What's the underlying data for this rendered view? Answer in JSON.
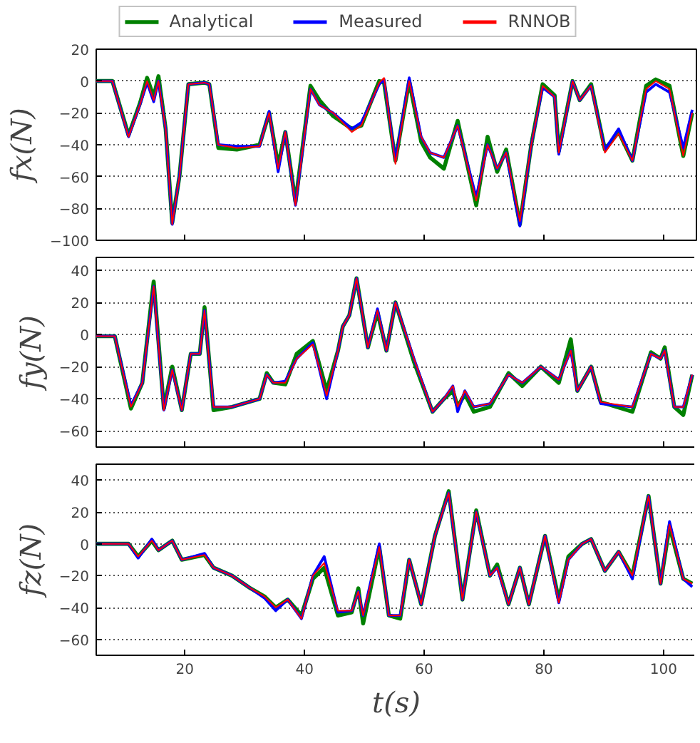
{
  "chart_data": [
    {
      "type": "line",
      "ylabel": "fx(N)",
      "legend": "top",
      "grid": "y",
      "tick_labels": "y",
      "xlim": [
        5.2,
        105.5
      ],
      "xticks": [
        20,
        40,
        60,
        80,
        100
      ],
      "ylim": [
        -100,
        20
      ],
      "yticks": [
        -100,
        -80,
        -60,
        -40,
        -20,
        0,
        20
      ],
      "x": [
        5.2,
        7.9,
        10.6,
        12.5,
        13.7,
        14.8,
        15.6,
        16.8,
        17.9,
        19.1,
        20.6,
        23.3,
        24.1,
        25.6,
        28.7,
        32.5,
        34.1,
        35.6,
        36.8,
        38.5,
        41,
        42.5,
        44.8,
        47.9,
        49.5,
        52.5,
        53.3,
        55.2,
        57.5,
        59.5,
        61,
        63.3,
        65.6,
        68.7,
        70.6,
        72.2,
        73.7,
        76,
        77.9,
        79.8,
        81.8,
        82.5,
        84.8,
        86,
        87.9,
        90.2,
        92.5,
        94.8,
        97.1,
        98.7,
        101,
        103.3,
        104.8
      ],
      "series": [
        {
          "name": "Analytical",
          "color": "#008000",
          "values": [
            0,
            0,
            -34,
            -14,
            2,
            -10,
            3,
            -30,
            -89,
            -60,
            -2,
            -1,
            -2,
            -42,
            -43,
            -40,
            -20,
            -53,
            -32,
            -76,
            -3,
            -12,
            -22,
            -30,
            -28,
            0,
            -1,
            -50,
            0,
            -38,
            -48,
            -55,
            -25,
            -78,
            -35,
            -57,
            -43,
            -90,
            -40,
            -2,
            -9,
            -44,
            0,
            -12,
            -2,
            -43,
            -32,
            -50,
            -3,
            1,
            -3,
            -47,
            -20
          ]
        },
        {
          "name": "Measured",
          "color": "#0000ff",
          "values": [
            0,
            0,
            -35,
            -15,
            -1,
            -13,
            0,
            -30,
            -90,
            -60,
            -2,
            -1,
            -2,
            -40,
            -41,
            -41,
            -19,
            -57,
            -32,
            -78,
            -5,
            -15,
            -20,
            -30,
            -26,
            -2,
            1,
            -50,
            2,
            -35,
            -45,
            -48,
            -28,
            -73,
            -40,
            -55,
            -45,
            -91,
            -40,
            -4,
            -10,
            -46,
            0,
            -12,
            -3,
            -43,
            -30,
            -50,
            -7,
            -2,
            -7,
            -42,
            -18
          ]
        },
        {
          "name": "RNNOB",
          "color": "#ff0000",
          "values": [
            0,
            0,
            -35,
            -15,
            0,
            -12,
            0,
            -30,
            -90,
            -60,
            -2,
            -1,
            -2,
            -40,
            -42,
            -41,
            -20,
            -55,
            -32,
            -78,
            -5,
            -15,
            -20,
            -32,
            -28,
            -1,
            2,
            -52,
            0,
            -35,
            -45,
            -48,
            -28,
            -75,
            -40,
            -55,
            -45,
            -88,
            -40,
            -3,
            -10,
            -45,
            0,
            -12,
            -3,
            -45,
            -33,
            -50,
            -5,
            0,
            -5,
            -47,
            -20
          ]
        }
      ]
    },
    {
      "type": "line",
      "ylabel": "fy(N)",
      "grid": "y",
      "tick_labels": "y",
      "xlim": [
        5.2,
        105.5
      ],
      "xticks": [
        20,
        40,
        60,
        80,
        100
      ],
      "ylim": [
        -70,
        48
      ],
      "yticks": [
        -60,
        -40,
        -20,
        0,
        20,
        40
      ],
      "x": [
        5.2,
        8.3,
        11,
        12.9,
        14.8,
        16.5,
        17.9,
        19.5,
        21,
        22.5,
        23.3,
        24.8,
        27.9,
        32.5,
        33.7,
        34.8,
        36.8,
        38.7,
        41.4,
        43.7,
        45.6,
        46.4,
        47.5,
        48.7,
        50.6,
        52.2,
        53.7,
        55.2,
        58.3,
        61.4,
        63.3,
        64.8,
        65.6,
        66.8,
        68.3,
        71,
        74.1,
        76.4,
        79.5,
        82.5,
        84.5,
        85.6,
        87.9,
        89.5,
        94.8,
        97.9,
        99.5,
        100.2,
        101.8,
        103.3,
        104.8
      ],
      "series": [
        {
          "color": "#008000",
          "values": [
            -1,
            -1,
            -46,
            -30,
            33,
            -46,
            -20,
            -47,
            -12,
            -12,
            17,
            -47,
            -45,
            -40,
            -24,
            -30,
            -31,
            -12,
            -4,
            -35,
            -10,
            5,
            12,
            35,
            -8,
            14,
            -10,
            20,
            -17,
            -48,
            -40,
            -35,
            -45,
            -37,
            -48,
            -45,
            -24,
            -32,
            -20,
            -30,
            -3,
            -35,
            -20,
            -42,
            -48,
            -11,
            -15,
            -8,
            -45,
            -50,
            -25
          ]
        },
        {
          "color": "#0000ff",
          "values": [
            -1,
            -1,
            -44,
            -30,
            30,
            -47,
            -22,
            -47,
            -12,
            -12,
            15,
            -45,
            -45,
            -40,
            -25,
            -30,
            -29,
            -15,
            -5,
            -40,
            -10,
            5,
            12,
            35,
            -8,
            16,
            -10,
            20,
            -15,
            -48,
            -40,
            -32,
            -48,
            -35,
            -45,
            -43,
            -25,
            -30,
            -20,
            -28,
            -10,
            -35,
            -20,
            -43,
            -45,
            -12,
            -15,
            -10,
            -45,
            -45,
            -25
          ]
        },
        {
          "color": "#ff0000",
          "values": [
            -1,
            -1,
            -45,
            -30,
            30,
            -47,
            -22,
            -47,
            -12,
            -12,
            15,
            -45,
            -45,
            -40,
            -25,
            -30,
            -30,
            -15,
            -6,
            -38,
            -10,
            5,
            12,
            35,
            -8,
            15,
            -10,
            20,
            -15,
            -48,
            -40,
            -32,
            -45,
            -35,
            -45,
            -43,
            -25,
            -30,
            -20,
            -28,
            -10,
            -35,
            -20,
            -42,
            -45,
            -12,
            -15,
            -10,
            -45,
            -45,
            -25
          ]
        }
      ]
    },
    {
      "type": "line",
      "ylabel": "fz(N)",
      "xlabel": "t(s)",
      "grid": "y",
      "xlim": [
        5.2,
        105.5
      ],
      "xticks": [
        20,
        40,
        60,
        80,
        100
      ],
      "ylim": [
        -70,
        50
      ],
      "yticks": [
        -60,
        -40,
        -20,
        0,
        20,
        40
      ],
      "x": [
        5.2,
        8.3,
        10.6,
        12.2,
        14.5,
        15.6,
        17.9,
        19.5,
        23.3,
        24.8,
        27.9,
        31,
        33.3,
        35.2,
        37.2,
        39.5,
        41.4,
        43.3,
        45.6,
        47.9,
        49,
        49.8,
        52.5,
        54.1,
        56,
        57.5,
        59.5,
        61.8,
        64.1,
        66.4,
        68.7,
        71,
        72.2,
        74.1,
        76,
        77.5,
        80.2,
        82.5,
        84.1,
        86.4,
        87.9,
        90.2,
        92.5,
        94.8,
        97.5,
        99.5,
        101,
        103.3,
        104.8
      ],
      "series": [
        {
          "color": "#008000",
          "values": [
            0,
            0,
            0,
            -8,
            2,
            -4,
            2,
            -10,
            -7,
            -15,
            -20,
            -28,
            -33,
            -40,
            -35,
            -45,
            -22,
            -15,
            -45,
            -43,
            -28,
            -50,
            -2,
            -45,
            -47,
            -10,
            -38,
            5,
            33,
            -35,
            21,
            -20,
            -13,
            -38,
            -15,
            -38,
            5,
            -35,
            -8,
            0,
            3,
            -17,
            -5,
            -20,
            30,
            -25,
            11,
            -22,
            -25
          ]
        },
        {
          "color": "#0000ff",
          "values": [
            0,
            0,
            0,
            -9,
            3,
            -4,
            2,
            -10,
            -6,
            -15,
            -20,
            -28,
            -34,
            -42,
            -35,
            -47,
            -20,
            -8,
            -43,
            -42,
            -30,
            -45,
            0,
            -45,
            -45,
            -10,
            -38,
            5,
            32,
            -35,
            20,
            -20,
            -15,
            -38,
            -15,
            -38,
            5,
            -37,
            -10,
            0,
            3,
            -17,
            -5,
            -22,
            30,
            -25,
            14,
            -22,
            -27
          ]
        },
        {
          "color": "#ff0000",
          "values": [
            0,
            0,
            0,
            -8,
            2,
            -4,
            2,
            -10,
            -7,
            -15,
            -20,
            -28,
            -33,
            -40,
            -35,
            -47,
            -20,
            -12,
            -42,
            -42,
            -30,
            -45,
            -2,
            -45,
            -45,
            -10,
            -38,
            5,
            32,
            -35,
            20,
            -20,
            -15,
            -38,
            -15,
            -38,
            5,
            -37,
            -10,
            0,
            3,
            -17,
            -5,
            -20,
            30,
            -25,
            12,
            -22,
            -25
          ]
        }
      ]
    }
  ]
}
